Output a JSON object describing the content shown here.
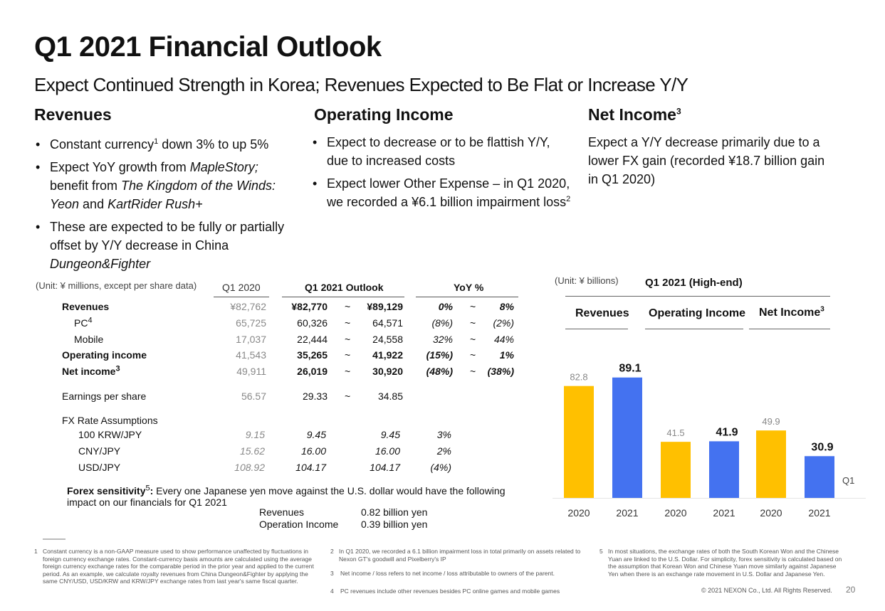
{
  "title": "Q1 2021 Financial Outlook",
  "subtitle": "Expect Continued Strength in Korea; Revenues Expected to Be Flat or Increase Y/Y",
  "revenues": {
    "heading": "Revenues",
    "b1_a": "Constant currency",
    "b1_sup": "1",
    "b1_b": " down 3% to up 5%",
    "b2_a": "Expect YoY growth from ",
    "b2_i1": "MapleStory;",
    "b2_b": " benefit from ",
    "b2_i2": "The Kingdom of the Winds: Yeon",
    "b2_c": " and ",
    "b2_i3": "KartRider Rush+",
    "b3_a": "These are expected to be fully or partially offset by Y/Y decrease in China ",
    "b3_i": "Dungeon&Fighter"
  },
  "operating": {
    "heading": "Operating Income",
    "b1": "Expect to decrease or to be flattish Y/Y, due to increased costs",
    "b2": "Expect lower Other Expense – in Q1 2020, we recorded a ¥6.1 billion impairment loss",
    "b2_sup": "2"
  },
  "net": {
    "heading": "Net Income",
    "heading_sup": "3",
    "text": "Expect a Y/Y decrease primarily due to a lower FX gain (recorded ¥18.7 billion gain in Q1 2020)"
  },
  "table": {
    "unit": "(Unit: ¥ millions, except per share data)",
    "col_q1_2020": "Q1 2020",
    "col_outlook": "Q1 2021 Outlook",
    "col_yoy": "YoY %",
    "tilde": "~",
    "rows": [
      {
        "label": "Revenues",
        "sup": "",
        "q1": "¥82,762",
        "lo": "¥82,770",
        "hi": "¥89,129",
        "ylo": "0%",
        "yhi": "8%"
      },
      {
        "label": "PC",
        "sup": "4",
        "q1": "65,725",
        "lo": "60,326",
        "hi": "64,571",
        "ylo": "(8%)",
        "yhi": "(2%)"
      },
      {
        "label": "Mobile",
        "sup": "",
        "q1": "17,037",
        "lo": "22,444",
        "hi": "24,558",
        "ylo": "32%",
        "yhi": "44%"
      },
      {
        "label": "Operating income",
        "sup": "",
        "q1": "41,543",
        "lo": "35,265",
        "hi": "41,922",
        "ylo": "(15%)",
        "yhi": "1%"
      },
      {
        "label": "Net income",
        "sup": "3",
        "q1": "49,911",
        "lo": "26,019",
        "hi": "30,920",
        "ylo": "(48%)",
        "yhi": "(38%)"
      }
    ],
    "eps": {
      "label": "Earnings per share",
      "q1": "56.57",
      "lo": "29.33",
      "hi": "34.85"
    },
    "fx_heading": "FX Rate Assumptions",
    "fx_rows": [
      {
        "label": "100 KRW/JPY",
        "q1": "9.15",
        "lo": "9.45",
        "hi": "9.45",
        "yoy": "3%"
      },
      {
        "label": "CNY/JPY",
        "q1": "15.62",
        "lo": "16.00",
        "hi": "16.00",
        "yoy": "2%"
      },
      {
        "label": "USD/JPY",
        "q1": "108.92",
        "lo": "104.17",
        "hi": "104.17",
        "yoy": "(4%)"
      }
    ],
    "forex_label": "Forex sensitivity",
    "forex_sup": "5",
    "forex_text": ": Every one Japanese yen move against the U.S. dollar would have the following impact on our financials for Q1 2021",
    "sens": [
      {
        "label": "Revenues",
        "value": "0.82 billion yen"
      },
      {
        "label": "Operation Income",
        "value": "0.39 billion yen"
      }
    ]
  },
  "chart_data": {
    "type": "bar",
    "unit": "(Unit: ¥ billions)",
    "title": "Q1 2021 (High-end)",
    "groups": [
      "Revenues",
      "Operating Income",
      "Net Income"
    ],
    "group_sups": [
      "",
      "",
      "3"
    ],
    "categories": [
      "2020",
      "2021",
      "2020",
      "2021",
      "2020",
      "2021"
    ],
    "values": [
      82.8,
      89.1,
      41.5,
      41.9,
      49.9,
      30.9
    ],
    "labels": [
      "82.8",
      "89.1",
      "41.5",
      "41.9",
      "49.9",
      "30.9"
    ],
    "colors": [
      "#FFC000",
      "#4472F0",
      "#FFC000",
      "#4472F0",
      "#FFC000",
      "#4472F0"
    ],
    "side_label": "Q1",
    "ylim": [
      0,
      100
    ]
  },
  "footnotes": {
    "f1_num": "1",
    "f1": "Constant currency is a non-GAAP measure used to show performance unaffected by fluctuations in foreign currency exchange rates. Constant-currency basis amounts are calculated using the average foreign currency exchange rates for the comparable period in the prior year and applied to the current period. As an example, we calculate royalty revenues from China Dungeon&Fighter by applying the same CNY/USD, USD/KRW and KRW/JPY exchange rates from last year's same fiscal quarter.",
    "f2_num": "2",
    "f2": "In Q1 2020, we recorded a 6.1 billion impairment loss in total primarily on assets related to Nexon GT's goodwill and Pixelberry's IP",
    "f3_num": "3",
    "f3": "Net income / loss refers to net income / loss attributable to owners of the parent.",
    "f4_num": "4",
    "f4": "PC revenues include other revenues besides PC online games and mobile games",
    "f5_num": "5",
    "f5": "In most situations, the exchange rates of both the South Korean Won and the Chinese Yuan are linked to the U.S. Dollar. For simplicity, forex sensitivity is calculated based on the assumption that Korean Won and Chinese Yuan move similarly against Japanese Yen when there is an exchange rate movement in U.S. Dollar and Japanese Yen.",
    "copyright": "© 2021 NEXON Co., Ltd. All Rights Reserved.",
    "page": "20"
  }
}
